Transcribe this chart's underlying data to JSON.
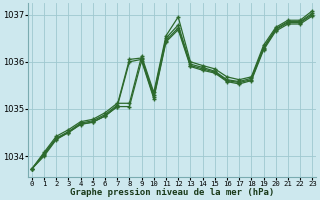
{
  "xlabel": "Graphe pression niveau de la mer (hPa)",
  "x_ticks": [
    0,
    1,
    2,
    3,
    4,
    5,
    6,
    7,
    8,
    9,
    10,
    11,
    12,
    13,
    14,
    15,
    16,
    17,
    18,
    19,
    20,
    21,
    22,
    23
  ],
  "ylim": [
    1033.55,
    1037.25
  ],
  "yticks": [
    1034,
    1035,
    1036,
    1037
  ],
  "bg_color": "#cde8ee",
  "grid_color": "#9fc8d0",
  "line_color": "#2d6a2d",
  "series": [
    [
      1033.73,
      1034.0,
      1034.35,
      1034.5,
      1034.68,
      1034.72,
      1034.85,
      1035.05,
      1036.0,
      1036.05,
      1035.25,
      1036.45,
      1036.72,
      1035.92,
      1035.85,
      1035.78,
      1035.6,
      1035.56,
      1035.62,
      1036.28,
      1036.68,
      1036.83,
      1036.83,
      1037.0
    ],
    [
      1033.73,
      1034.05,
      1034.38,
      1034.52,
      1034.7,
      1034.75,
      1034.88,
      1035.08,
      1036.05,
      1036.08,
      1035.3,
      1036.5,
      1036.78,
      1035.95,
      1035.88,
      1035.8,
      1035.62,
      1035.58,
      1035.65,
      1036.3,
      1036.7,
      1036.85,
      1036.85,
      1037.03
    ],
    [
      1033.73,
      1034.08,
      1034.42,
      1034.56,
      1034.73,
      1034.78,
      1034.92,
      1035.12,
      1035.12,
      1036.12,
      1035.35,
      1036.55,
      1036.95,
      1036.0,
      1035.92,
      1035.85,
      1035.68,
      1035.62,
      1035.68,
      1036.35,
      1036.73,
      1036.88,
      1036.88,
      1037.08
    ],
    [
      1033.73,
      1034.03,
      1034.37,
      1034.5,
      1034.67,
      1034.72,
      1034.85,
      1035.05,
      1035.05,
      1036.02,
      1035.22,
      1036.42,
      1036.68,
      1035.9,
      1035.82,
      1035.76,
      1035.58,
      1035.53,
      1035.6,
      1036.25,
      1036.65,
      1036.8,
      1036.8,
      1036.97
    ]
  ]
}
